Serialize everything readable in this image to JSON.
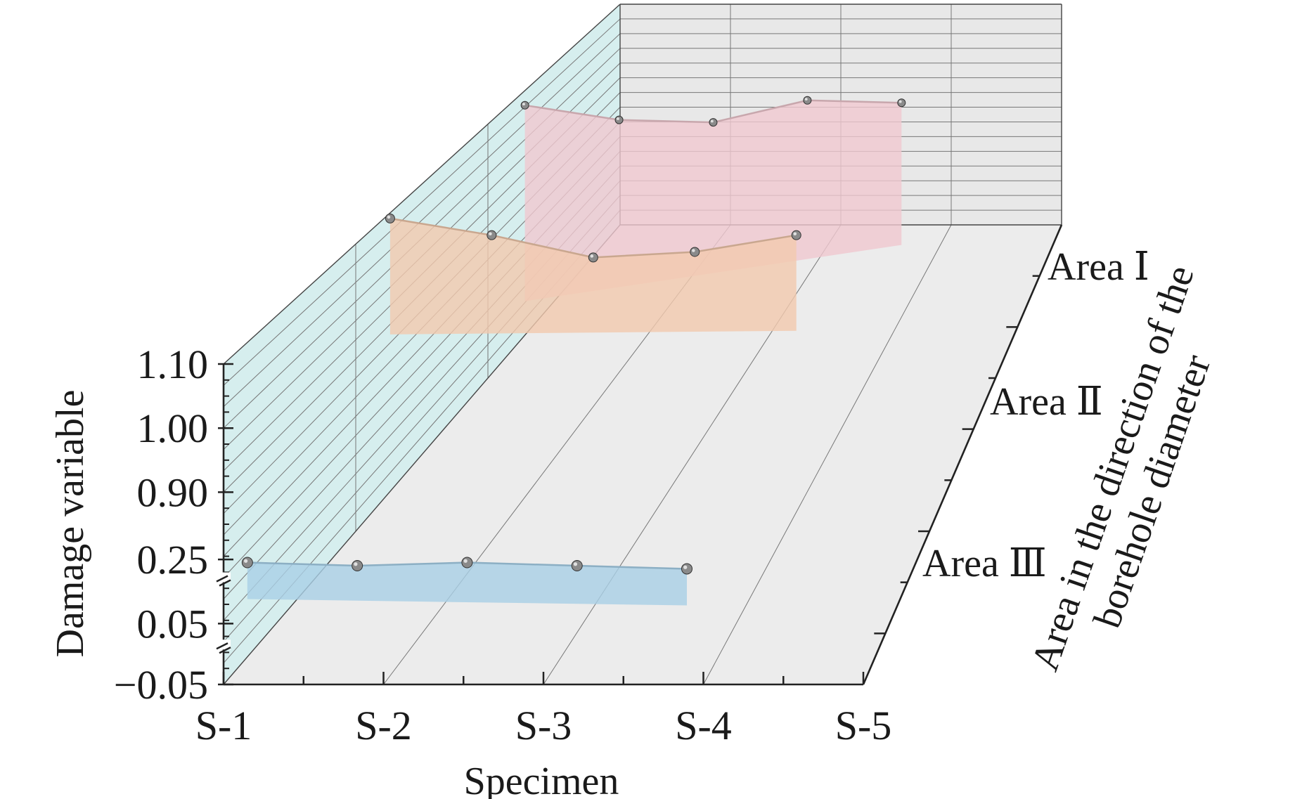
{
  "chart_data": {
    "type": "line",
    "subtype": "3d-waterfall-area",
    "xlabel": "Specimen",
    "ylabel": "Damage variable",
    "zlabel_lines": [
      "Area in the direction of the",
      "borehole diameter"
    ],
    "categories": [
      "S-1",
      "S-2",
      "S-3",
      "S-4",
      "S-5"
    ],
    "y_ticks": [
      "1.10",
      "1.00",
      "0.90",
      "0.25",
      "0.05",
      "−0.05"
    ],
    "y_axis_breaks": 2,
    "grid": true,
    "series": [
      {
        "name": "Area Ⅰ",
        "values": [
          1.07,
          1.04,
          1.035,
          1.08,
          1.075
        ],
        "fill": "#f0c8cf",
        "line": "#c8a7ad"
      },
      {
        "name": "Area Ⅱ",
        "values": [
          1.09,
          1.06,
          1.02,
          1.03,
          1.06
        ],
        "fill": "#f3c9ae",
        "line": "#c9a78f"
      },
      {
        "name": "Area Ⅲ",
        "values": [
          0.16,
          0.15,
          0.16,
          0.15,
          0.14
        ],
        "fill": "#a9d0e6",
        "line": "#8cafc4"
      }
    ],
    "colors": {
      "left_wall": "#d6eeee",
      "back_wall": "#e8e8e8",
      "floor": "#ececec",
      "marker": "#8a8a8a"
    }
  }
}
